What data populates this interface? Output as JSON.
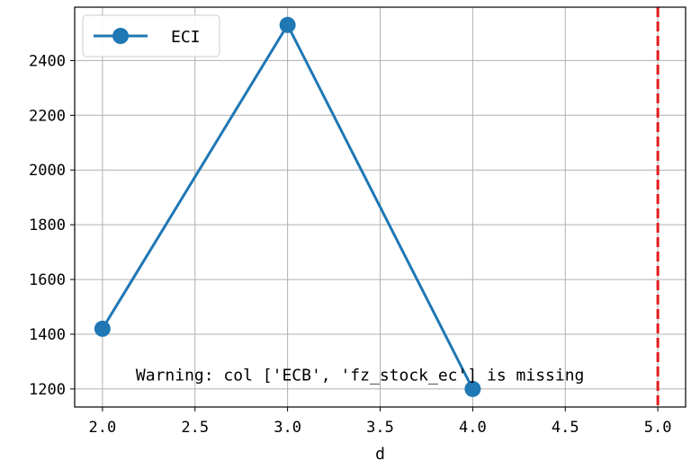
{
  "chart_data": {
    "type": "line",
    "title": "",
    "xlabel": "d",
    "ylabel": "",
    "xlim": [
      1.85,
      5.15
    ],
    "ylim": [
      1134,
      2595
    ],
    "xticks": [
      2.0,
      2.5,
      3.0,
      3.5,
      4.0,
      4.5,
      5.0
    ],
    "xtick_labels": [
      "2.0",
      "2.5",
      "3.0",
      "3.5",
      "4.0",
      "4.5",
      "5.0"
    ],
    "yticks": [
      1200,
      1400,
      1600,
      1800,
      2000,
      2200,
      2400
    ],
    "ytick_labels": [
      "1200",
      "1400",
      "1600",
      "1800",
      "2000",
      "2200",
      "2400"
    ],
    "grid": true,
    "legend_position": "top-left",
    "series": [
      {
        "name": "ECI",
        "color": "#1f77b4",
        "marker": "circle",
        "x": [
          2.0,
          3.0,
          4.0
        ],
        "y": [
          1420,
          2530,
          1200
        ]
      }
    ],
    "vertical_line": {
      "x": 5.0,
      "color": "#e41a1c",
      "style": "dashed"
    },
    "annotation": {
      "text": "Warning: col ['ECB', 'fz_stock_ec'] is missing",
      "anchor_x": 2.18,
      "anchor_y": 1290
    }
  }
}
